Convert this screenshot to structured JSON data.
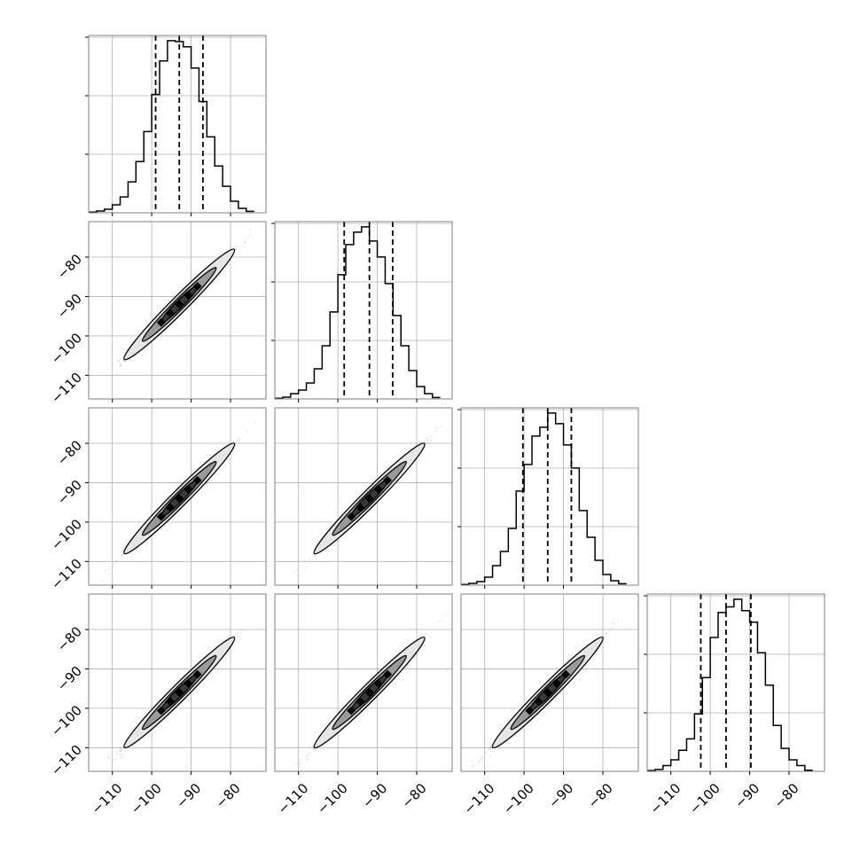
{
  "chart_data": {
    "type": "corner",
    "n_params": 4,
    "axis_range": [
      -116,
      -71
    ],
    "tick_values": [
      -110,
      -100,
      -90,
      -80
    ],
    "tick_labels": [
      "−110",
      "−100",
      "−90",
      "−80"
    ],
    "grid": true,
    "colors": {
      "line": "#000000",
      "grid": "#b0b0b0",
      "frame": "#808080"
    },
    "histograms": [
      {
        "param_index": 0,
        "bin_edges": [
          -116,
          -114,
          -112,
          -110,
          -108,
          -106,
          -104,
          -102,
          -100,
          -98,
          -96,
          -94,
          -92,
          -90,
          -88,
          -86,
          -84,
          -82,
          -80,
          -78,
          -76,
          -74
        ],
        "counts": [
          0.004,
          0.01,
          0.02,
          0.045,
          0.09,
          0.175,
          0.29,
          0.46,
          0.67,
          0.86,
          0.975,
          0.97,
          0.94,
          0.82,
          0.63,
          0.43,
          0.265,
          0.15,
          0.065,
          0.025,
          0.008
        ],
        "quantiles": [
          -99.0,
          -93.0,
          -87.0
        ]
      },
      {
        "param_index": 1,
        "bin_edges": [
          -116,
          -114,
          -112,
          -110,
          -108,
          -106,
          -104,
          -102,
          -100,
          -98,
          -96,
          -94,
          -92,
          -90,
          -88,
          -86,
          -84,
          -82,
          -80,
          -78,
          -76,
          -74
        ],
        "counts": [
          0.004,
          0.01,
          0.03,
          0.05,
          0.09,
          0.17,
          0.3,
          0.49,
          0.7,
          0.87,
          0.94,
          0.97,
          0.89,
          0.8,
          0.65,
          0.47,
          0.3,
          0.16,
          0.07,
          0.03,
          0.008
        ],
        "quantiles": [
          -98.4,
          -92.0,
          -86.1
        ]
      },
      {
        "param_index": 2,
        "bin_edges": [
          -116,
          -114,
          -112,
          -110,
          -108,
          -106,
          -104,
          -102,
          -100,
          -98,
          -96,
          -94,
          -92,
          -90,
          -88,
          -86,
          -84,
          -82,
          -80,
          -78,
          -76,
          -74
        ],
        "counts": [
          0.004,
          0.01,
          0.02,
          0.045,
          0.11,
          0.19,
          0.32,
          0.53,
          0.68,
          0.84,
          0.89,
          0.97,
          0.91,
          0.79,
          0.66,
          0.42,
          0.27,
          0.14,
          0.06,
          0.025,
          0.008
        ],
        "quantiles": [
          -100.3,
          -94.0,
          -88.0
        ]
      },
      {
        "param_index": 3,
        "bin_edges": [
          -116,
          -114,
          -112,
          -110,
          -108,
          -106,
          -104,
          -102,
          -100,
          -98,
          -96,
          -94,
          -92,
          -90,
          -88,
          -86,
          -84,
          -82,
          -80,
          -78,
          -76,
          -74
        ],
        "counts": [
          0.004,
          0.01,
          0.03,
          0.06,
          0.11,
          0.17,
          0.3,
          0.49,
          0.7,
          0.83,
          0.86,
          0.9,
          0.84,
          0.78,
          0.62,
          0.45,
          0.24,
          0.12,
          0.06,
          0.03,
          0.006
        ],
        "quantiles": [
          -102.4,
          -96.0,
          -89.7
        ]
      }
    ],
    "scatter_panels": [
      {
        "row": 1,
        "col": 0,
        "x_mean": -93.0,
        "y_mean": -92.0,
        "x_sigma": 6.0,
        "y_sigma": 6.0,
        "correlation": 0.99
      },
      {
        "row": 2,
        "col": 0,
        "x_mean": -93.0,
        "y_mean": -94.0,
        "x_sigma": 6.0,
        "y_sigma": 6.0,
        "correlation": 0.99
      },
      {
        "row": 2,
        "col": 1,
        "x_mean": -92.0,
        "y_mean": -94.0,
        "x_sigma": 6.0,
        "y_sigma": 6.0,
        "correlation": 0.99
      },
      {
        "row": 3,
        "col": 0,
        "x_mean": -93.0,
        "y_mean": -96.0,
        "x_sigma": 6.0,
        "y_sigma": 6.0,
        "correlation": 0.99
      },
      {
        "row": 3,
        "col": 1,
        "x_mean": -92.0,
        "y_mean": -96.0,
        "x_sigma": 6.0,
        "y_sigma": 6.0,
        "correlation": 0.99
      },
      {
        "row": 3,
        "col": 2,
        "x_mean": -94.0,
        "y_mean": -96.0,
        "x_sigma": 6.0,
        "y_sigma": 6.0,
        "correlation": 0.99
      }
    ],
    "contour_sigmas": [
      0.5,
      1.0,
      1.5
    ]
  }
}
